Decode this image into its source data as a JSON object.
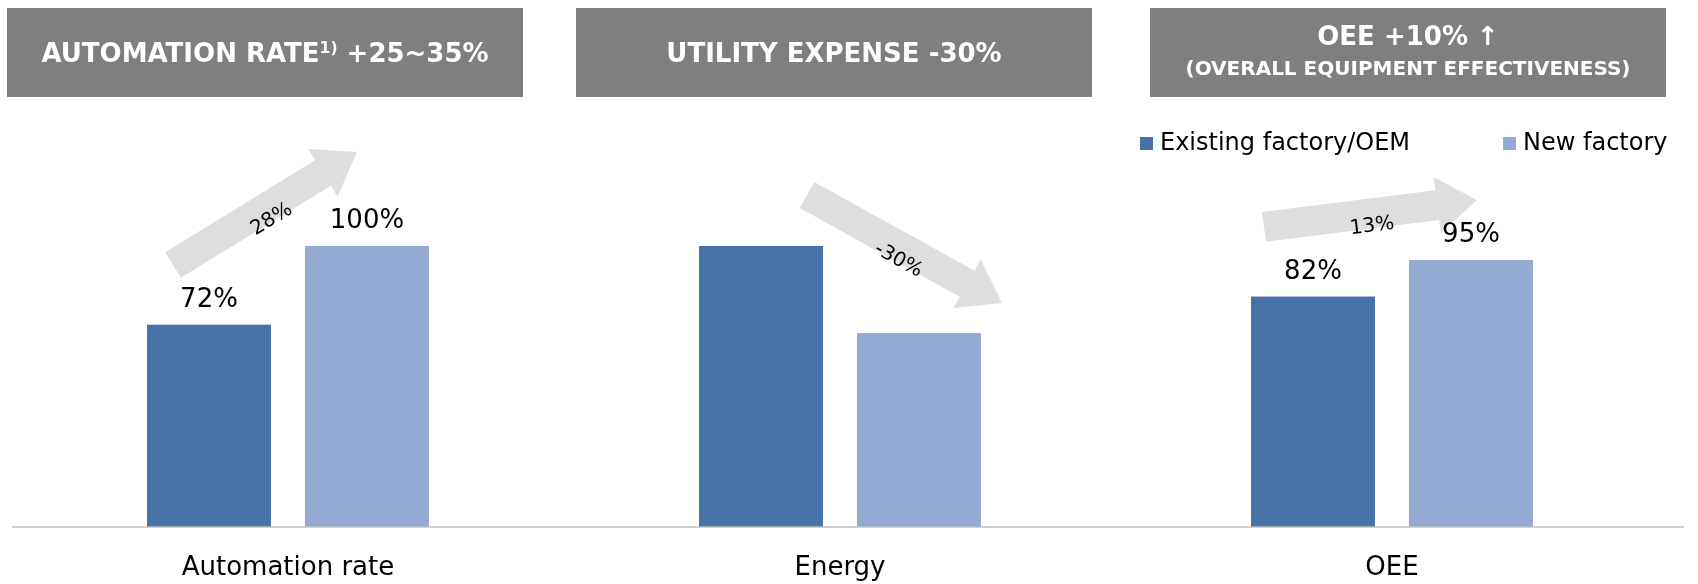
{
  "chart_data": {
    "type": "bar",
    "categories": [
      "Automation rate",
      "Energy",
      "OEE"
    ],
    "series": [
      {
        "name": "Existing factory/OEM",
        "color": "#4673a7",
        "values": [
          72,
          100,
          82
        ],
        "value_labels": [
          "72%",
          null,
          "82%"
        ]
      },
      {
        "name": "New factory",
        "color": "#95aad2",
        "values": [
          100,
          69,
          95
        ],
        "value_labels": [
          "100%",
          null,
          "95%"
        ]
      }
    ],
    "legend": "top right",
    "annotations": [
      "AUTOMATION RATE$^{1)}$ +25~35%",
      "UTILITY EXPENSE -30%",
      "OEE +10% ↑\n(OVERALL EQUIPMENT EFFECTIVENESS)",
      "28%",
      "-30%",
      "13%"
    ]
  }
}
